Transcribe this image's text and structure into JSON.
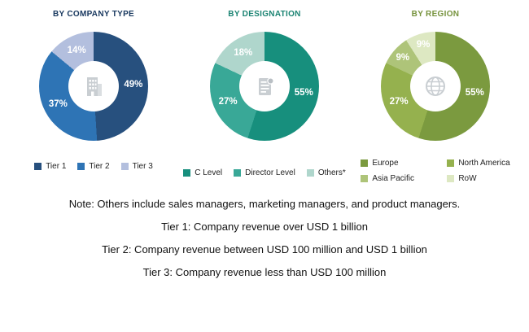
{
  "chart_data": [
    {
      "type": "pie",
      "variant": "donut",
      "title": "BY COMPANY TYPE",
      "title_color": "#17375E",
      "center_icon": "building-icon",
      "legend_layout": "row",
      "categories": [
        "Tier 1",
        "Tier 2",
        "Tier 3"
      ],
      "values": [
        49,
        37,
        14
      ],
      "slices": [
        {
          "label": "Tier 1",
          "value": 49,
          "color": "#27507E"
        },
        {
          "label": "Tier 2",
          "value": 37,
          "color": "#2E74B5"
        },
        {
          "label": "Tier 3",
          "value": 14,
          "color": "#B3BFDE"
        }
      ]
    },
    {
      "type": "pie",
      "variant": "donut",
      "title": "BY DESIGNATION",
      "title_color": "#1A8372",
      "center_icon": "document-icon",
      "legend_layout": "row",
      "categories": [
        "C Level",
        "Director Level",
        "Others*"
      ],
      "values": [
        55,
        27,
        18
      ],
      "slices": [
        {
          "label": "C Level",
          "value": 55,
          "color": "#178F7D"
        },
        {
          "label": "Director Level",
          "value": 27,
          "color": "#39A897"
        },
        {
          "label": "Others*",
          "value": 18,
          "color": "#AFD6CC"
        }
      ]
    },
    {
      "type": "pie",
      "variant": "donut",
      "title": "BY REGION",
      "title_color": "#76923C",
      "center_icon": "globe-icon",
      "legend_layout": "grid",
      "categories": [
        "Europe",
        "North America",
        "Asia Pacific",
        "RoW"
      ],
      "values": [
        55,
        27,
        9,
        9
      ],
      "slices": [
        {
          "label": "Europe",
          "value": 55,
          "color": "#7B9A3F"
        },
        {
          "label": "North America",
          "value": 27,
          "color": "#95B14E"
        },
        {
          "label": "Asia Pacific",
          "value": 9,
          "color": "#AEC479"
        },
        {
          "label": "RoW",
          "value": 9,
          "color": "#DDE8C2"
        }
      ]
    }
  ],
  "notes": [
    "Note: Others include sales managers, marketing managers, and product managers.",
    "Tier 1: Company revenue over USD 1 billion",
    "Tier 2: Company revenue between USD 100 million and USD 1 billion",
    "Tier 3: Company revenue less than USD 100 million"
  ]
}
